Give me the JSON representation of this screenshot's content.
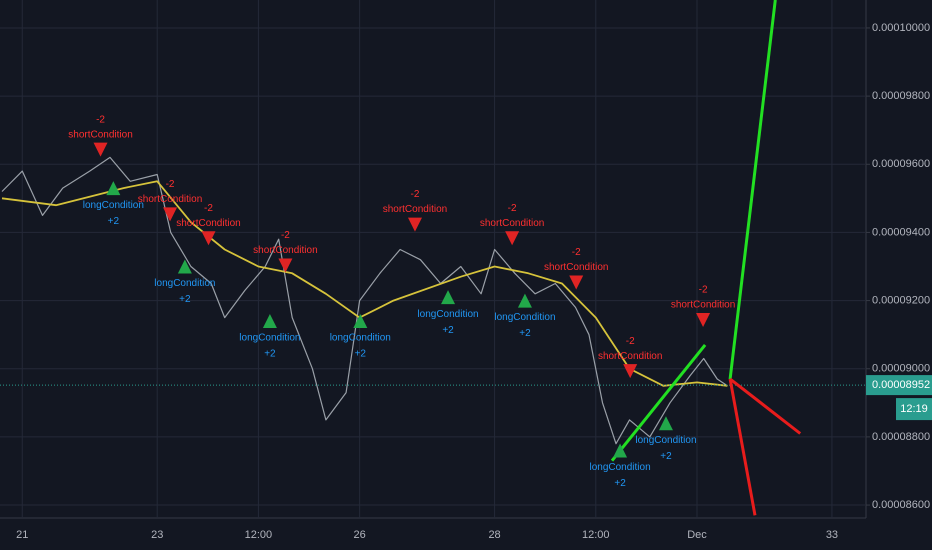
{
  "chart_data": {
    "type": "line",
    "xlim": [
      20.67,
      33.49
    ],
    "xticks": [
      21,
      23,
      {
        "value": 24.5,
        "label": "12:00"
      },
      26,
      28,
      {
        "value": 29.5,
        "label": "12:00"
      },
      {
        "value": 31,
        "label": "Dec"
      },
      33
    ],
    "ylim": [
      8.562e-05,
      0.00010082
    ],
    "yticks": [
      {
        "value": 8.6e-05,
        "label": "0.00008600"
      },
      {
        "value": 8.8e-05,
        "label": "0.00008800"
      },
      {
        "value": 9e-05,
        "label": "0.00009000"
      },
      {
        "value": 9.2e-05,
        "label": "0.00009200"
      },
      {
        "value": 9.4e-05,
        "label": "0.00009400"
      },
      {
        "value": 9.6e-05,
        "label": "0.00009600"
      },
      {
        "value": 9.8e-05,
        "label": "0.00009800"
      },
      {
        "value": 0.0001,
        "label": "0.00010000"
      }
    ],
    "grid": true,
    "series": [
      {
        "color": "#9aa0a8",
        "x": [
          20.7,
          21.0,
          21.3,
          21.6,
          22.0,
          22.3,
          22.6,
          23.0,
          23.2,
          23.5,
          23.8,
          24.0,
          24.3,
          24.6,
          24.8,
          25.0,
          25.3,
          25.5,
          25.8,
          26.0,
          26.3,
          26.6,
          26.9,
          27.2,
          27.5,
          27.8,
          28.0,
          28.3,
          28.6,
          28.9,
          29.2,
          29.4,
          29.6,
          29.8,
          30.0,
          30.3,
          30.6,
          30.9,
          31.1,
          31.3,
          31.45
        ],
        "values": [
          9.52e-05,
          9.58e-05,
          9.45e-05,
          9.53e-05,
          9.58e-05,
          9.62e-05,
          9.55e-05,
          9.57e-05,
          9.4e-05,
          9.3e-05,
          9.25e-05,
          9.15e-05,
          9.23e-05,
          9.3e-05,
          9.38e-05,
          9.15e-05,
          9e-05,
          8.85e-05,
          8.93e-05,
          9.2e-05,
          9.28e-05,
          9.35e-05,
          9.32e-05,
          9.25e-05,
          9.3e-05,
          9.22e-05,
          9.35e-05,
          9.28e-05,
          9.22e-05,
          9.25e-05,
          9.18e-05,
          9.1e-05,
          8.9e-05,
          8.78e-05,
          8.85e-05,
          8.8e-05,
          8.9e-05,
          8.98e-05,
          9.03e-05,
          8.97e-05,
          8.95e-05
        ]
      },
      {
        "color": "#d6c33b",
        "x": [
          20.7,
          21.5,
          22.5,
          23.0,
          23.5,
          24.0,
          24.5,
          25.0,
          25.5,
          26.0,
          26.5,
          27.5,
          28.0,
          28.5,
          29.0,
          29.5,
          30.0,
          30.5,
          31.0,
          31.45
        ],
        "values": [
          9.5e-05,
          9.48e-05,
          9.53e-05,
          9.55e-05,
          9.43e-05,
          9.35e-05,
          9.3e-05,
          9.28e-05,
          9.22e-05,
          9.15e-05,
          9.2e-05,
          9.27e-05,
          9.3e-05,
          9.28e-05,
          9.25e-05,
          9.15e-05,
          9e-05,
          8.95e-05,
          8.96e-05,
          8.95e-05
        ]
      }
    ],
    "drawings": [
      {
        "color": "#22e022",
        "x": [
          29.74,
          31.12
        ],
        "values": [
          8.73e-05,
          9.07e-05
        ]
      },
      {
        "color": "#22e022",
        "x": [
          31.49,
          32.16
        ],
        "values": [
          8.97e-05,
          0.00010082
        ]
      },
      {
        "color": "#e81c1c",
        "x": [
          31.49,
          32.53
        ],
        "values": [
          8.97e-05,
          8.81e-05
        ]
      },
      {
        "color": "#e81c1c",
        "x": [
          31.49,
          31.86
        ],
        "values": [
          8.97e-05,
          8.57e-05
        ]
      }
    ],
    "shorts": [
      {
        "x": 22.16,
        "price": 9.64e-05,
        "label": "shortCondition",
        "amount": "-2"
      },
      {
        "x": 23.19,
        "price": 9.45e-05,
        "label": "shortCondition",
        "amount": "-2"
      },
      {
        "x": 23.76,
        "price": 9.38e-05,
        "label": "shortCondition",
        "amount": "-2"
      },
      {
        "x": 24.9,
        "price": 9.3e-05,
        "label": "shortCondition",
        "amount": "-2"
      },
      {
        "x": 26.82,
        "price": 9.42e-05,
        "label": "shortCondition",
        "amount": "-2"
      },
      {
        "x": 28.26,
        "price": 9.38e-05,
        "label": "shortCondition",
        "amount": "-2"
      },
      {
        "x": 29.21,
        "price": 9.25e-05,
        "label": "shortCondition",
        "amount": "-2"
      },
      {
        "x": 30.01,
        "price": 8.99e-05,
        "label": "shortCondition",
        "amount": "-2"
      },
      {
        "x": 31.09,
        "price": 9.14e-05,
        "label": "shortCondition",
        "amount": "-2"
      }
    ],
    "longs": [
      {
        "x": 22.35,
        "price": 9.53e-05,
        "label": "longCondition",
        "amount": "+2"
      },
      {
        "x": 23.41,
        "price": 9.3e-05,
        "label": "longCondition",
        "amount": "+2"
      },
      {
        "x": 24.67,
        "price": 9.14e-05,
        "label": "longCondition",
        "amount": "+2"
      },
      {
        "x": 26.01,
        "price": 9.14e-05,
        "label": "longCondition",
        "amount": "+2"
      },
      {
        "x": 27.31,
        "price": 9.21e-05,
        "label": "longCondition",
        "amount": "+2"
      },
      {
        "x": 28.45,
        "price": 9.2e-05,
        "label": "longCondition",
        "amount": "+2"
      },
      {
        "x": 29.86,
        "price": 8.76e-05,
        "label": "longCondition",
        "amount": "+2"
      },
      {
        "x": 30.54,
        "price": 8.84e-05,
        "label": "longCondition",
        "amount": "+2"
      }
    ],
    "current_price": {
      "value": 8.952e-05,
      "label": "0.00008952"
    },
    "countdown": "12:19"
  }
}
